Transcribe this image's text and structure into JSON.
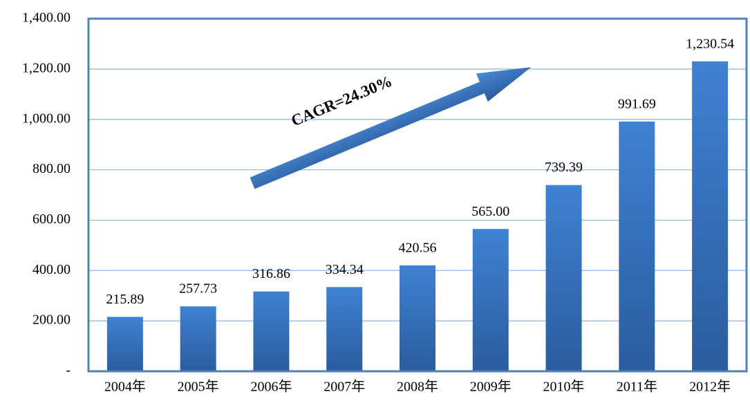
{
  "chart_data": {
    "type": "bar",
    "categories": [
      "2004年",
      "2005年",
      "2006年",
      "2007年",
      "2008年",
      "2009年",
      "2010年",
      "2011年",
      "2012年"
    ],
    "values": [
      215.89,
      257.73,
      316.86,
      334.34,
      420.56,
      565.0,
      739.39,
      991.69,
      1230.54
    ],
    "value_labels": [
      "215.89",
      "257.73",
      "316.86",
      "334.34",
      "420.56",
      "565.00",
      "739.39",
      "991.69",
      "1,230.54"
    ],
    "color": "#3a78c6",
    "ylim": [
      0,
      1400
    ],
    "yticks": [
      {
        "value": 0,
        "label": "-"
      },
      {
        "value": 200,
        "label": "200.00"
      },
      {
        "value": 400,
        "label": "400.00"
      },
      {
        "value": 600,
        "label": "600.00"
      },
      {
        "value": 800,
        "label": "800.00"
      },
      {
        "value": 1000,
        "label": "1,000.00"
      },
      {
        "value": 1200,
        "label": "1,200.00"
      },
      {
        "value": 1400,
        "label": "1,400.00"
      }
    ],
    "grid": true,
    "annotation": "CAGR=24.30%"
  }
}
